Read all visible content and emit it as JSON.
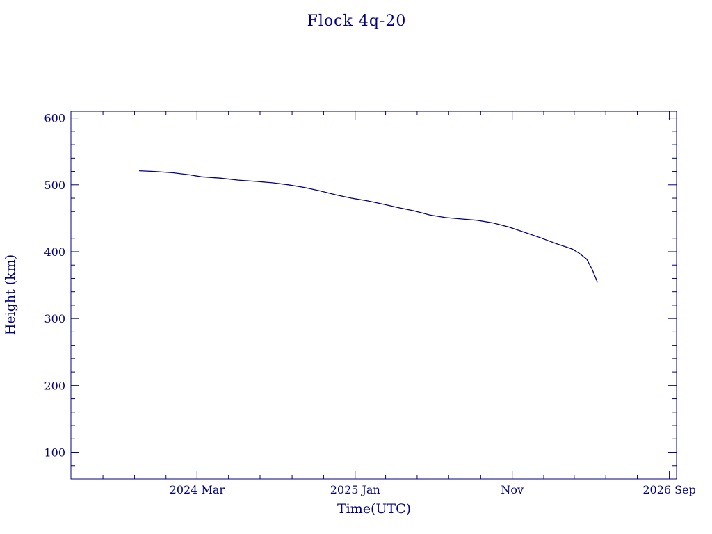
{
  "chart_data": {
    "type": "line",
    "title": "Flock 4q-20",
    "xlabel": "Time(UTC)",
    "ylabel": "Height (km)",
    "x_axis": {
      "type": "date",
      "min": "2023-07-01",
      "max": "2026-09-15",
      "major_ticks": [
        {
          "date": "2024-03-01",
          "label": "2024 Mar"
        },
        {
          "date": "2025-01-01",
          "label": "2025 Jan"
        },
        {
          "date": "2025-11-01",
          "label": "Nov"
        },
        {
          "date": "2026-09-01",
          "label": "2026 Sep"
        }
      ],
      "minor_tick_months": 2
    },
    "y_axis": {
      "min": 60,
      "max": 610,
      "major_ticks": [
        100,
        200,
        300,
        400,
        500,
        600
      ],
      "minor_step": 20
    },
    "grid": false,
    "color": "#000080",
    "series": [
      {
        "x": [
          "2023-11-10",
          "2023-12-10",
          "2024-01-15",
          "2024-02-15",
          "2024-03-10",
          "2024-04-15",
          "2024-05-20",
          "2024-06-25",
          "2024-07-25",
          "2024-08-25",
          "2024-09-25",
          "2024-10-25",
          "2024-11-25",
          "2024-12-25",
          "2025-01-25",
          "2025-02-25",
          "2025-03-25",
          "2025-04-25",
          "2025-05-25",
          "2025-06-25",
          "2025-07-25",
          "2025-08-25",
          "2025-09-25",
          "2025-10-25",
          "2025-11-25",
          "2025-12-25",
          "2026-01-25",
          "2026-02-25",
          "2026-03-10",
          "2026-03-25",
          "2026-04-05",
          "2026-04-15"
        ],
        "y": [
          521,
          520,
          518,
          515,
          512,
          510,
          507,
          505,
          503,
          500,
          496,
          491,
          485,
          480,
          476,
          471,
          466,
          461,
          455,
          451,
          449,
          447,
          443,
          437,
          429,
          421,
          412,
          404,
          398,
          389,
          373,
          354
        ]
      }
    ]
  }
}
